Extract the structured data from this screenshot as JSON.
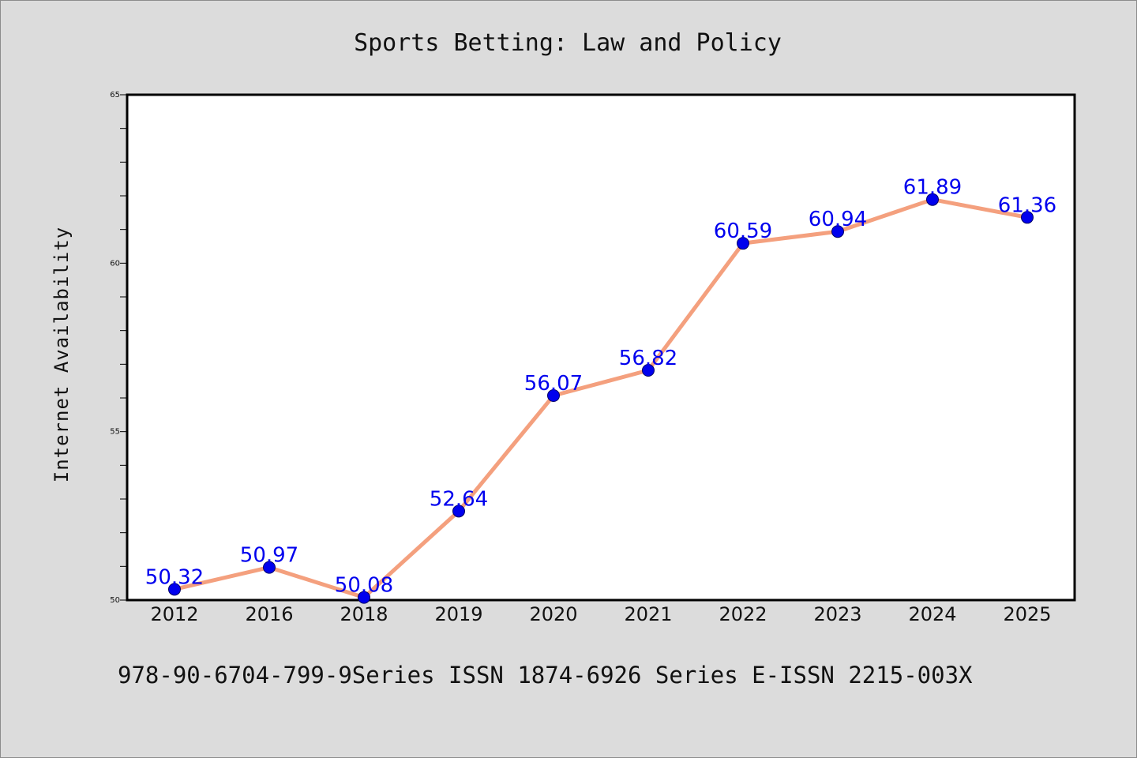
{
  "chart_data": {
    "type": "line",
    "title": "Sports Betting: Law and Policy",
    "xlabel": "",
    "ylabel": "Internet Availability",
    "categories": [
      "2012",
      "2016",
      "2018",
      "2019",
      "2020",
      "2021",
      "2022",
      "2023",
      "2024",
      "2025"
    ],
    "series": [
      {
        "values": [
          50.32,
          50.97,
          50.08,
          52.64,
          56.07,
          56.82,
          60.59,
          60.94,
          61.89,
          61.36
        ],
        "data_labels": [
          "50.32",
          "50.97",
          "50.08",
          "52.64",
          "56.07",
          "56.82",
          "60.59",
          "60.94",
          "61.89",
          "61.36"
        ]
      }
    ],
    "ylim": [
      50,
      65
    ],
    "yticks": [
      "50",
      "55",
      "60",
      "65"
    ],
    "grid": false,
    "legend": "none",
    "colors": {
      "line": "#f4a07e",
      "marker": "#0000ee",
      "data_label": "#0000ee",
      "plot_background": "#ffffff",
      "figure_background": "#dcdcdc"
    }
  },
  "footer": {
    "text": "978-90-6704-799-9Series ISSN 1874-6926 Series E-ISSN 2215-003X"
  }
}
